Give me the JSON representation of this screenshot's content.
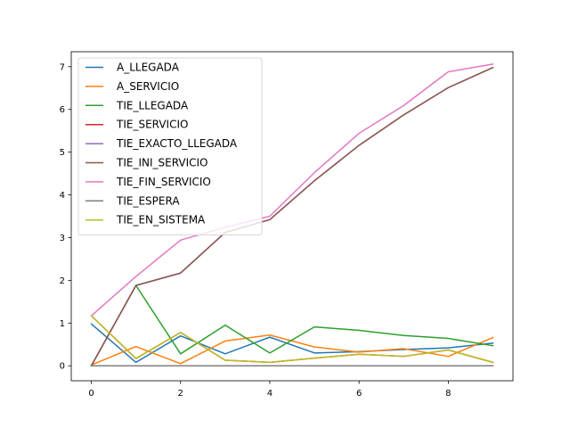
{
  "chart_data": {
    "type": "line",
    "x": [
      0,
      1,
      2,
      3,
      4,
      5,
      6,
      7,
      8,
      9
    ],
    "xlim": [
      -0.45,
      9.45
    ],
    "ylim": [
      -0.35,
      7.35
    ],
    "xticks": [
      0,
      2,
      4,
      6,
      8
    ],
    "yticks": [
      0,
      1,
      2,
      3,
      4,
      5,
      6,
      7
    ],
    "grid": false,
    "legend_position": "top-left",
    "series": [
      {
        "name": "A_LLEGADA",
        "color": "#1f77b4",
        "values": [
          0.98,
          0.08,
          0.7,
          0.28,
          0.67,
          0.3,
          0.33,
          0.38,
          0.42,
          0.53
        ]
      },
      {
        "name": "A_SERVICIO",
        "color": "#ff7f0e",
        "values": [
          0.02,
          0.45,
          0.05,
          0.58,
          0.72,
          0.44,
          0.32,
          0.4,
          0.22,
          0.66
        ]
      },
      {
        "name": "TIE_LLEGADA",
        "color": "#2ca02c",
        "values": [
          0.0,
          1.88,
          0.28,
          0.95,
          0.3,
          0.91,
          0.83,
          0.71,
          0.64,
          0.47
        ]
      },
      {
        "name": "TIE_SERVICIO",
        "color": "#d62728",
        "values": [
          1.17,
          0.17,
          0.78,
          0.13,
          0.08,
          0.18,
          0.27,
          0.22,
          0.37,
          0.08
        ]
      },
      {
        "name": "TIE_EXACTO_LLEGADA",
        "color": "#9467bd",
        "values": [
          0.0,
          1.88,
          2.17,
          3.12,
          3.42,
          4.33,
          5.16,
          5.87,
          6.51,
          6.98
        ]
      },
      {
        "name": "TIE_INI_SERVICIO",
        "color": "#8c564b",
        "values": [
          0.0,
          1.88,
          2.17,
          3.12,
          3.42,
          4.33,
          5.16,
          5.87,
          6.51,
          6.98
        ]
      },
      {
        "name": "TIE_FIN_SERVICIO",
        "color": "#e377c2",
        "values": [
          1.17,
          2.09,
          2.94,
          3.24,
          3.5,
          4.52,
          5.44,
          6.09,
          6.88,
          7.06
        ]
      },
      {
        "name": "TIE_ESPERA",
        "color": "#7f7f7f",
        "values": [
          0,
          0,
          0,
          0,
          0,
          0,
          0,
          0,
          0,
          0
        ]
      },
      {
        "name": "TIE_EN_SISTEMA",
        "color": "#bcbd22",
        "values": [
          1.17,
          0.17,
          0.78,
          0.13,
          0.08,
          0.18,
          0.27,
          0.22,
          0.37,
          0.08
        ]
      }
    ]
  }
}
